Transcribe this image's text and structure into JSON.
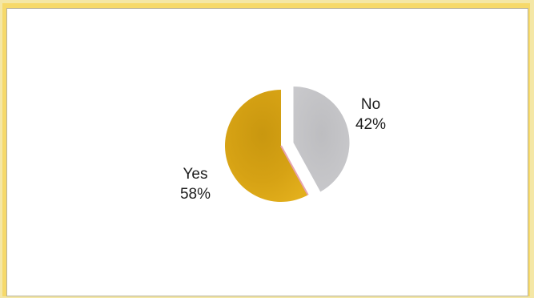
{
  "chart_data": {
    "type": "pie",
    "title": "",
    "slices": [
      {
        "label": "No",
        "value": 42,
        "value_label": "42%",
        "color": "#c4c4c7",
        "exploded": true
      },
      {
        "label": "Yes",
        "value": 58,
        "value_label": "58%",
        "color": "#d8a317",
        "exploded": false
      }
    ]
  },
  "colors": {
    "page_background": "#f4e7a6",
    "frame": "#f6d96a",
    "panel": "#ffffff"
  }
}
